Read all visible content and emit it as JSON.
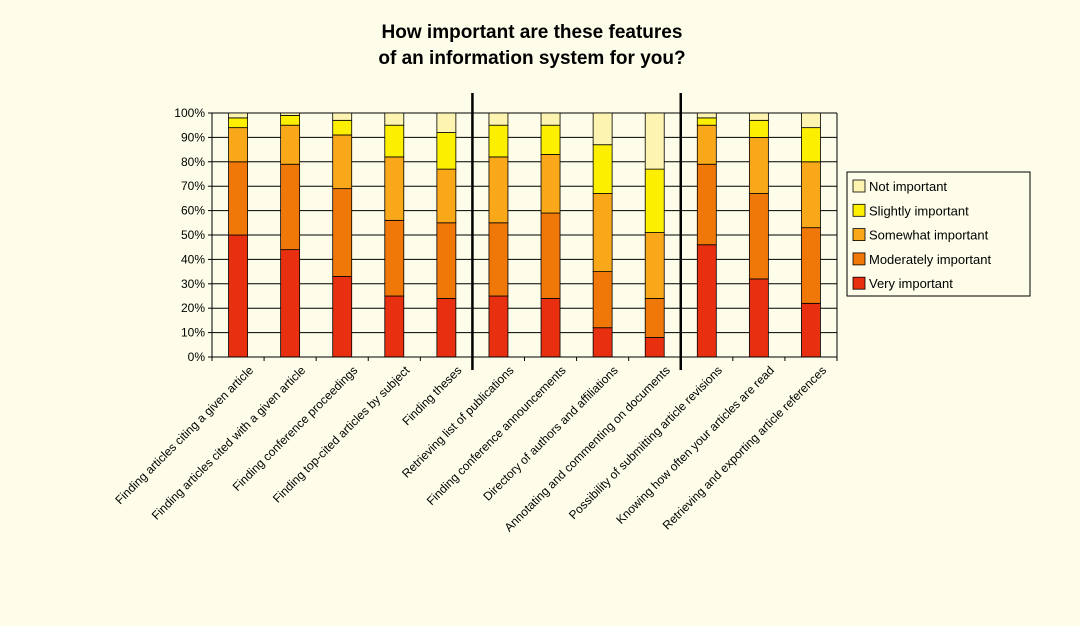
{
  "chart_data": {
    "type": "bar",
    "stacked": true,
    "percent": true,
    "title": "How important are these features of an information system for you?",
    "title_lines": [
      "How important are these features",
      "of an information system for you?"
    ],
    "xlabel": "",
    "ylabel": "",
    "ylim": [
      0,
      100
    ],
    "y_ticks": [
      "0%",
      "10%",
      "20%",
      "30%",
      "40%",
      "50%",
      "60%",
      "70%",
      "80%",
      "90%",
      "100%"
    ],
    "grid": true,
    "legend_position": "right",
    "categories": [
      "Finding articles citing a given article",
      "Finding articles cited with a given article",
      "Finding conference proceedings",
      "Finding top-cited articles by subject",
      "Finding theses",
      "Retrieving list of publications",
      "Finding conference announcements",
      "Directory of authors and affiliations",
      "Annotating and commenting on documents",
      "Possibility of submitting article revisions",
      "Knowing how often your articles are read",
      "Retrieving and exporting article references"
    ],
    "group_separators_after": [
      4,
      8
    ],
    "series": [
      {
        "name": "Very important",
        "color": "#e83010",
        "values": [
          50,
          44,
          33,
          25,
          24,
          25,
          24,
          12,
          8,
          46,
          32,
          22
        ]
      },
      {
        "name": "Moderately important",
        "color": "#f07808",
        "values": [
          30,
          35,
          36,
          31,
          31,
          30,
          35,
          23,
          16,
          33,
          35,
          31
        ]
      },
      {
        "name": "Somewhat important",
        "color": "#f8a818",
        "values": [
          14,
          16,
          22,
          26,
          22,
          27,
          24,
          32,
          27,
          16,
          23,
          27
        ]
      },
      {
        "name": "Slightly important",
        "color": "#fcf000",
        "values": [
          4,
          4,
          6,
          13,
          15,
          13,
          12,
          20,
          26,
          3,
          7,
          14
        ]
      },
      {
        "name": "Not important",
        "color": "#fcf4b0",
        "values": [
          2,
          1,
          3,
          5,
          8,
          5,
          5,
          13,
          23,
          2,
          3,
          6
        ]
      }
    ],
    "legend_order": [
      "Not important",
      "Slightly important",
      "Somewhat important",
      "Moderately important",
      "Very important"
    ]
  }
}
